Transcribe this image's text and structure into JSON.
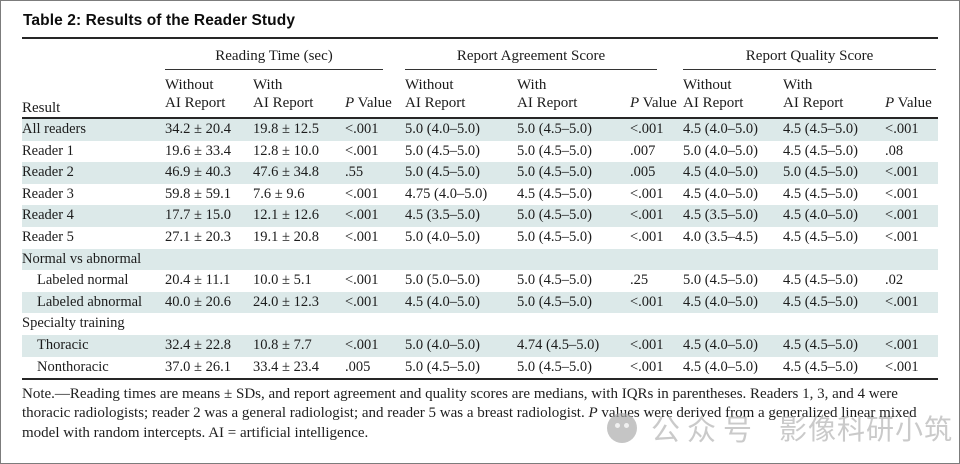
{
  "colors": {
    "row_shade": "#dce9e9",
    "watermark": "#bdbdbd"
  },
  "table": {
    "title": "Table 2: Results of the Reader Study",
    "result_header": "Result",
    "groups": [
      {
        "label": "Reading Time (sec)"
      },
      {
        "label": "Report Agreement Score"
      },
      {
        "label": "Report Quality Score"
      }
    ],
    "sub_headers": {
      "without_line1": "Without",
      "without_line2": "AI Report",
      "with_line1": "With",
      "with_line2": "AI Report",
      "p_italic": "P",
      "value_text": "Value"
    },
    "rows": [
      {
        "type": "data",
        "label": "All readers",
        "indent": false,
        "shade": true,
        "cells": [
          "34.2 ± 20.4",
          "19.8 ± 12.5",
          "<.001",
          "5.0 (4.0–5.0)",
          "5.0 (4.5–5.0)",
          "<.001",
          "4.5 (4.0–5.0)",
          "4.5 (4.5–5.0)",
          "<.001"
        ]
      },
      {
        "type": "data",
        "label": "Reader 1",
        "indent": false,
        "shade": false,
        "cells": [
          "19.6 ± 33.4",
          "12.8 ± 10.0",
          "<.001",
          "5.0 (4.5–5.0)",
          "5.0 (4.5–5.0)",
          ".007",
          "5.0 (4.0–5.0)",
          "4.5 (4.5–5.0)",
          ".08"
        ]
      },
      {
        "type": "data",
        "label": "Reader 2",
        "indent": false,
        "shade": true,
        "cells": [
          "46.9 ± 40.3",
          "47.6 ± 34.8",
          ".55",
          "5.0 (4.5–5.0)",
          "5.0 (4.5–5.0)",
          ".005",
          "4.5 (4.0–5.0)",
          "5.0 (4.5–5.0)",
          "<.001"
        ]
      },
      {
        "type": "data",
        "label": "Reader 3",
        "indent": false,
        "shade": false,
        "cells": [
          "59.8 ± 59.1",
          "7.6 ± 9.6",
          "<.001",
          "4.75 (4.0–5.0)",
          "4.5 (4.5–5.0)",
          "<.001",
          "4.5 (4.0–5.0)",
          "4.5 (4.5–5.0)",
          "<.001"
        ]
      },
      {
        "type": "data",
        "label": "Reader 4",
        "indent": false,
        "shade": true,
        "cells": [
          "17.7 ± 15.0",
          "12.1 ± 12.6",
          "<.001",
          "4.5 (3.5–5.0)",
          "5.0 (4.5–5.0)",
          "<.001",
          "4.5 (3.5–5.0)",
          "4.5 (4.0–5.0)",
          "<.001"
        ]
      },
      {
        "type": "data",
        "label": "Reader 5",
        "indent": false,
        "shade": false,
        "cells": [
          "27.1 ± 20.3",
          "19.1 ± 20.8",
          "<.001",
          "5.0 (4.0–5.0)",
          "5.0 (4.5–5.0)",
          "<.001",
          "4.0 (3.5–4.5)",
          "4.5 (4.5–5.0)",
          "<.001"
        ]
      },
      {
        "type": "section",
        "label": "Normal vs abnormal",
        "indent": false,
        "shade": true,
        "cells": []
      },
      {
        "type": "data",
        "label": "Labeled normal",
        "indent": true,
        "shade": false,
        "cells": [
          "20.4 ± 11.1",
          "10.0 ± 5.1",
          "<.001",
          "5.0 (5.0–5.0)",
          "5.0 (4.5–5.0)",
          ".25",
          "5.0 (4.5–5.0)",
          "4.5 (4.5–5.0)",
          ".02"
        ]
      },
      {
        "type": "data",
        "label": "Labeled abnormal",
        "indent": true,
        "shade": true,
        "cells": [
          "40.0 ± 20.6",
          "24.0 ± 12.3",
          "<.001",
          "4.5 (4.0–5.0)",
          "5.0 (4.5–5.0)",
          "<.001",
          "4.5 (4.0–5.0)",
          "4.5 (4.5–5.0)",
          "<.001"
        ]
      },
      {
        "type": "section",
        "label": "Specialty training",
        "indent": false,
        "shade": false,
        "cells": []
      },
      {
        "type": "data",
        "label": "Thoracic",
        "indent": true,
        "shade": true,
        "cells": [
          "32.4 ± 22.8",
          "10.8 ± 7.7",
          "<.001",
          "5.0 (4.0–5.0)",
          "4.74 (4.5–5.0)",
          "<.001",
          "4.5 (4.0–5.0)",
          "4.5 (4.5–5.0)",
          "<.001"
        ]
      },
      {
        "type": "data",
        "label": "Nonthoracic",
        "indent": true,
        "shade": false,
        "cells": [
          "37.0 ± 26.1",
          "33.4 ± 23.4",
          ".005",
          "5.0 (4.5–5.0)",
          "5.0 (4.5–5.0)",
          "<.001",
          "4.5 (4.0–5.0)",
          "4.5 (4.5–5.0)",
          "<.001"
        ]
      }
    ]
  },
  "note": {
    "text1": "Note.—Reading times are means ± SDs, and report agreement and quality scores are medians, with IQRs in parentheses. Readers 1, 3, and 4 were thoracic radiologists; reader 2 was a general radiologist; and reader 5 was a breast radiologist. ",
    "p_italic": "P",
    "text2": " values were derived from a generalized linear mixed model with random intercepts. AI = artificial intelligence."
  },
  "watermark": {
    "icon": "wechat-logo",
    "text_1": "公众号",
    "text_2": "影像科研小筑"
  }
}
